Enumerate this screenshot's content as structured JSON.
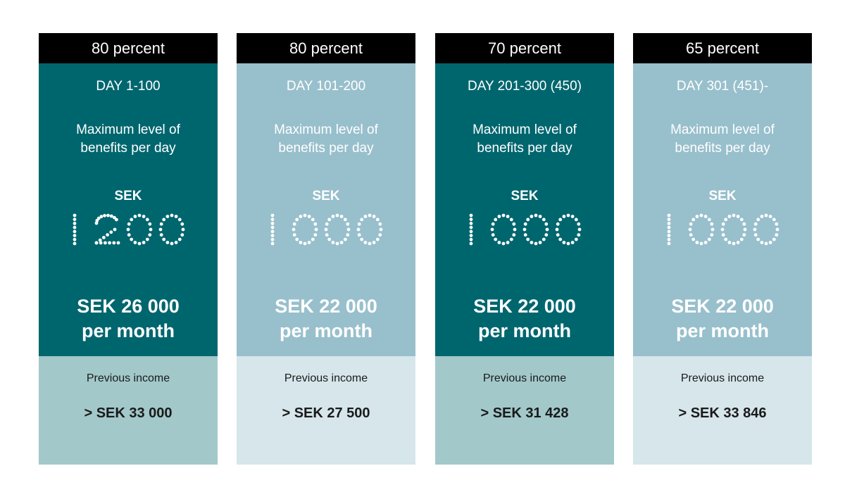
{
  "columns": [
    {
      "percent": "80 percent",
      "days": "DAY 1-100",
      "max_label": "Maximum level of benefits per day",
      "sek_label": "SEK",
      "daily_amount": "1 200",
      "monthly_line1": "SEK 26 000",
      "monthly_line2": "per month",
      "prev_label": "Previous income",
      "prev_value": "> SEK 33 000"
    },
    {
      "percent": "80 percent",
      "days": "DAY 101-200",
      "max_label": "Maximum level of benefits per day",
      "sek_label": "SEK",
      "daily_amount": "1 000",
      "monthly_line1": "SEK 22 000",
      "monthly_line2": "per month",
      "prev_label": "Previous income",
      "prev_value": "> SEK 27 500"
    },
    {
      "percent": "70 percent",
      "days": "DAY 201-300 (450)",
      "max_label": "Maximum level of benefits per day",
      "sek_label": "SEK",
      "daily_amount": "1 000",
      "monthly_line1": "SEK 22 000",
      "monthly_line2": "per month",
      "prev_label": "Previous income",
      "prev_value": "> SEK 31 428"
    },
    {
      "percent": "65 percent",
      "days": "DAY 301 (451)-",
      "max_label": "Maximum level of benefits per day",
      "sek_label": "SEK",
      "daily_amount": "1 000",
      "monthly_line1": "SEK 22 000",
      "monthly_line2": "per month",
      "prev_label": "Previous income",
      "prev_value": "> SEK 33 846"
    }
  ],
  "colors": {
    "header": "#000000",
    "dark_panel": "#00666e",
    "light_panel": "#98bfcc",
    "dark_footer": "#a2c8ca",
    "light_footer": "#d6e6eb",
    "panel_text": "#ffffff",
    "footer_text": "#1a1a1a"
  }
}
